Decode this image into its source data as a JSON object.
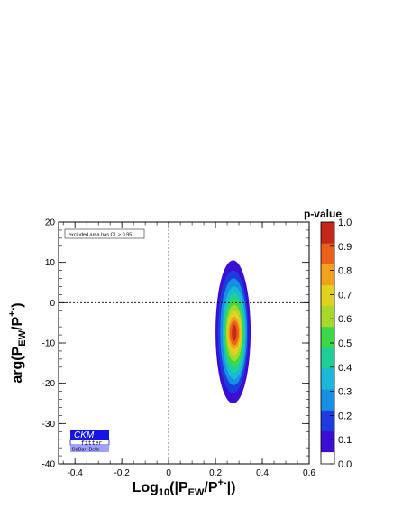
{
  "chart_data": {
    "type": "heatmap",
    "title": "",
    "xlabel": {
      "base": "Log",
      "sub1": "10",
      "mid": "(|P",
      "sub2": "EW",
      "mid2": "/P",
      "sup": "+-",
      "end": "|)"
    },
    "ylabel": {
      "base": "arg(P",
      "sub": "EW",
      "mid": "/P",
      "sup": "+-",
      "end": ")"
    },
    "xlim": [
      -0.47,
      0.6
    ],
    "ylim": [
      -40,
      20
    ],
    "x_ticks": [
      "-0.4",
      "-0.2",
      "0",
      "0.2",
      "0.4",
      "0.6"
    ],
    "x_tick_values": [
      -0.4,
      -0.2,
      0,
      0.2,
      0.4,
      0.6
    ],
    "y_ticks": [
      "-40",
      "-30",
      "-20",
      "-10",
      "0",
      "10",
      "20"
    ],
    "y_tick_values": [
      -40,
      -30,
      -20,
      -10,
      0,
      10,
      20
    ],
    "dashed_reference_lines": {
      "x": 0,
      "y": 0
    },
    "best_fit": {
      "x": 0.28,
      "y": -7.5,
      "pvalue": 1.0
    },
    "contours": [
      {
        "pvalue": 0.05,
        "color": "#3a0fd2",
        "x_min": 0.2,
        "x_max": 0.35,
        "y_min": -25,
        "y_max": 10.5
      },
      {
        "pvalue": 0.15,
        "color": "#1d3ce0",
        "x_min": 0.21,
        "x_max": 0.34,
        "y_min": -22.5,
        "y_max": 8
      },
      {
        "pvalue": 0.25,
        "color": "#178fe3",
        "x_min": 0.22,
        "x_max": 0.335,
        "y_min": -20.5,
        "y_max": 6
      },
      {
        "pvalue": 0.35,
        "color": "#1ab8d9",
        "x_min": 0.23,
        "x_max": 0.33,
        "y_min": -19,
        "y_max": 4
      },
      {
        "pvalue": 0.45,
        "color": "#1fcf9a",
        "x_min": 0.235,
        "x_max": 0.325,
        "y_min": -17.5,
        "y_max": 2.5
      },
      {
        "pvalue": 0.55,
        "color": "#3ed748",
        "x_min": 0.24,
        "x_max": 0.32,
        "y_min": -16,
        "y_max": 1
      },
      {
        "pvalue": 0.65,
        "color": "#a6d92a",
        "x_min": 0.245,
        "x_max": 0.315,
        "y_min": -14.5,
        "y_max": -0.5
      },
      {
        "pvalue": 0.75,
        "color": "#e0d21f",
        "x_min": 0.25,
        "x_max": 0.31,
        "y_min": -13,
        "y_max": -2
      },
      {
        "pvalue": 0.85,
        "color": "#f2a11a",
        "x_min": 0.255,
        "x_max": 0.305,
        "y_min": -11.5,
        "y_max": -3.5
      },
      {
        "pvalue": 0.92,
        "color": "#e8601a",
        "x_min": 0.26,
        "x_max": 0.3,
        "y_min": -10.5,
        "y_max": -4.5
      },
      {
        "pvalue": 0.98,
        "color": "#c42818",
        "x_min": 0.27,
        "x_max": 0.29,
        "y_min": -9.5,
        "y_max": -5.5
      }
    ],
    "colorbar": {
      "title": "p-value",
      "range": [
        0,
        1
      ],
      "ticks": [
        "0.0",
        "0.1",
        "0.2",
        "0.3",
        "0.4",
        "0.5",
        "0.6",
        "0.7",
        "0.8",
        "0.9",
        "1.0"
      ],
      "tick_values": [
        0,
        0.1,
        0.2,
        0.3,
        0.4,
        0.5,
        0.6,
        0.7,
        0.8,
        0.9,
        1.0
      ],
      "white_below": 0.05,
      "colors": [
        "#ffffff",
        "#3a0fd2",
        "#1d3ce0",
        "#178fe3",
        "#1ab8d9",
        "#1fcf9a",
        "#3ed748",
        "#a6d92a",
        "#e0d21f",
        "#f2a11a",
        "#e8601a",
        "#c42818"
      ]
    },
    "annotations": {
      "excluded_note": "excluded area has CL > 0.95"
    },
    "logo": {
      "line1": "CKM",
      "line2": "fitter",
      "line3": "BaBar+Belle"
    }
  }
}
